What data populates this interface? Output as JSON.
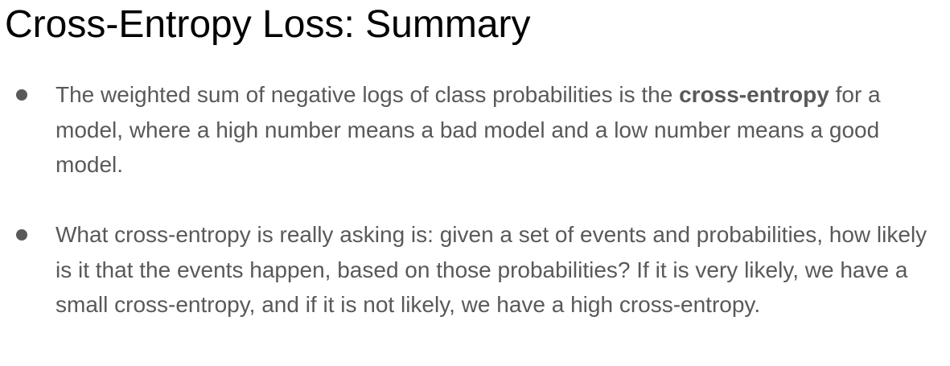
{
  "title": "Cross-Entropy Loss: Summary",
  "bullets": [
    {
      "text_before": "The weighted sum of negative logs of class probabilities is the ",
      "bold": "cross-entropy",
      "text_after": " for a model, where a high number means a bad model and a low number means a good model."
    },
    {
      "text": "What cross-entropy is really asking is: given a set of events and probabilities, how likely is it that the events happen, based on those probabilities? If it is very likely, we have a small cross-entropy, and if it is not likely, we have a high cross-entropy."
    }
  ]
}
